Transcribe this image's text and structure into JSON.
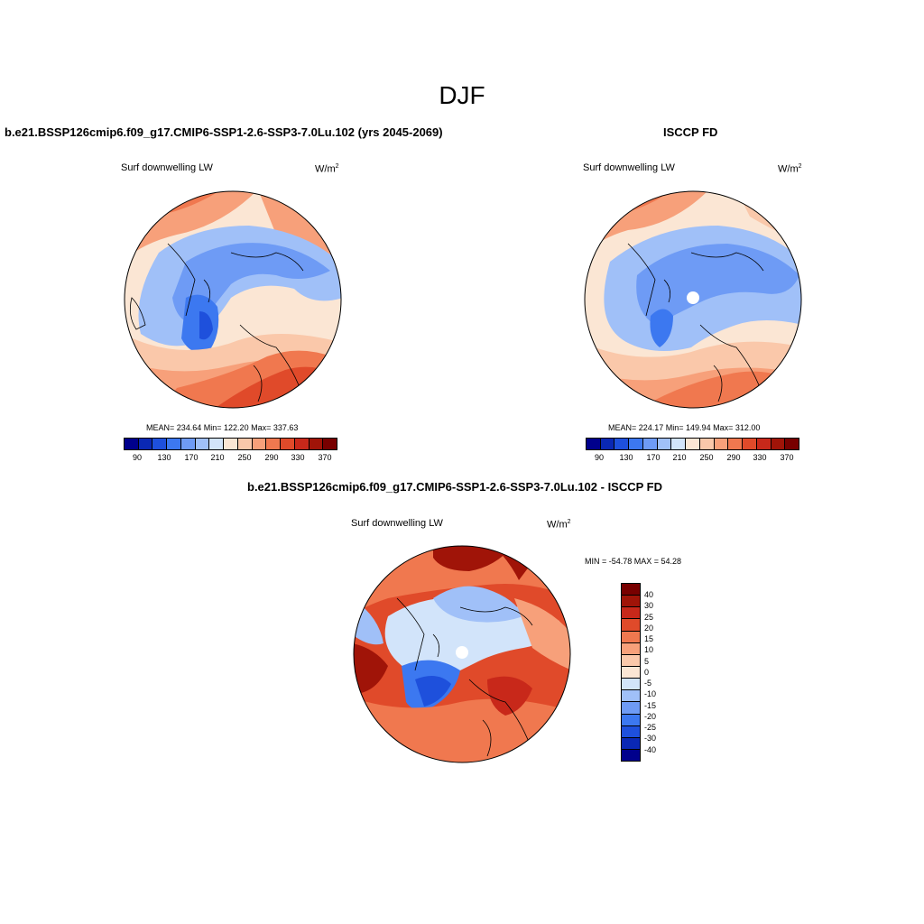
{
  "figure": {
    "season": "DJF"
  },
  "panels": [
    {
      "id": "model",
      "title": "b.e21.BSSP126cmip6.f09_g17.CMIP6-SSP1-2.6-SSP3-7.0Lu.102 (yrs 2045-2069)",
      "variable": "Surf downwelling LW",
      "units_base": "W/m",
      "units_sup": "2",
      "stats": "MEAN= 234.64  Min= 122.20  Max= 337.63"
    },
    {
      "id": "obs",
      "title": "ISCCP FD",
      "variable": "Surf downwelling LW",
      "units_base": "W/m",
      "units_sup": "2",
      "stats": "MEAN= 224.17  Min= 149.94  Max= 312.00"
    },
    {
      "id": "diff",
      "title": "b.e21.BSSP126cmip6.f09_g17.CMIP6-SSP1-2.6-SSP3-7.0Lu.102 - ISCCP FD",
      "variable": "Surf downwelling LW",
      "units_base": "W/m",
      "units_sup": "2",
      "stats": "MIN = -54.78 MAX =  54.28"
    }
  ],
  "colorbar_abs": {
    "tick_labels": [
      "90",
      "130",
      "170",
      "210",
      "250",
      "290",
      "330",
      "370"
    ],
    "colors": [
      "#00008c",
      "#0a28b4",
      "#1e50dc",
      "#3c78f0",
      "#6e9bf5",
      "#a0c0f8",
      "#d2e4fa",
      "#fbe6d4",
      "#fac8aa",
      "#f7a07a",
      "#f0784f",
      "#e04a2a",
      "#c8281a",
      "#a01408",
      "#780000"
    ]
  },
  "colorbar_diff": {
    "tick_labels": [
      "40",
      "30",
      "25",
      "20",
      "15",
      "10",
      "5",
      "0",
      "-5",
      "-10",
      "-15",
      "-20",
      "-25",
      "-30",
      "-40"
    ],
    "colors": [
      "#780000",
      "#a01408",
      "#c8281a",
      "#e04a2a",
      "#f0784f",
      "#f7a07a",
      "#fac8aa",
      "#fbe6d4",
      "#d2e4fa",
      "#a0c0f8",
      "#6e9bf5",
      "#3c78f0",
      "#1e50dc",
      "#0a28b4",
      "#00008c"
    ]
  }
}
